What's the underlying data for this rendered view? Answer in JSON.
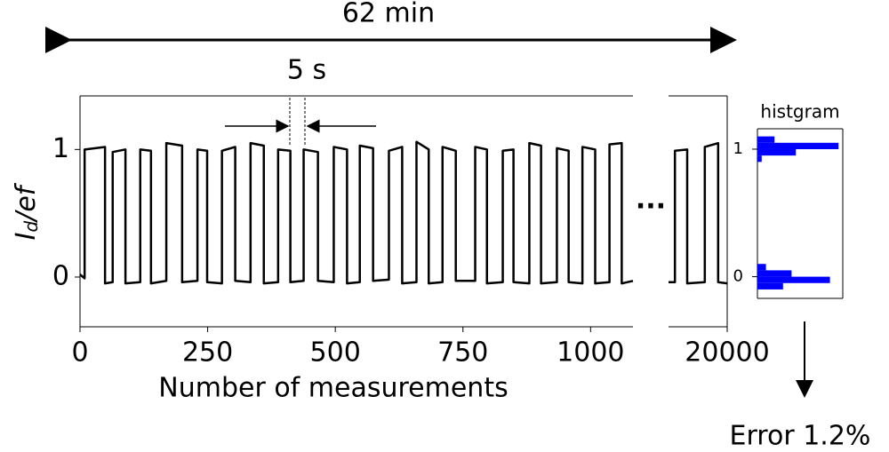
{
  "chart_data": [
    {
      "type": "line",
      "xlabel": "Number of measurements",
      "ylabel": [
        "I",
        "d",
        "/ef"
      ],
      "annotations": {
        "duration": "62 min",
        "interval": "5 s",
        "ellipsis": "...",
        "error": "Error 1.2%"
      },
      "xlim": [
        0,
        1083
      ],
      "ylim": [
        -0.39,
        1.42
      ],
      "xticks": [
        0,
        250,
        500,
        750,
        1000
      ],
      "yticks": [
        0,
        1
      ],
      "color": "#000000",
      "x": [
        0,
        9,
        9,
        49,
        49,
        64,
        64,
        89,
        89,
        118,
        118,
        139,
        139,
        169,
        169,
        200,
        200,
        230,
        230,
        249,
        249,
        278,
        278,
        304,
        304,
        334,
        334,
        360,
        360,
        388,
        388,
        412,
        412,
        438,
        438,
        466,
        466,
        497,
        497,
        523,
        523,
        548,
        548,
        574,
        574,
        605,
        605,
        631,
        631,
        659,
        659,
        683,
        683,
        710,
        710,
        736,
        736,
        774,
        774,
        797,
        797,
        828,
        828,
        849,
        849,
        880,
        880,
        903,
        903,
        934,
        934,
        957,
        957,
        984,
        984,
        1009,
        1009,
        1037,
        1037,
        1061,
        1061,
        1083
      ],
      "values": [
        0.02,
        -0.01,
        1.0,
        1.02,
        -0.05,
        -0.04,
        0.98,
        1.0,
        -0.05,
        -0.04,
        1.0,
        0.99,
        -0.05,
        -0.03,
        1.05,
        1.03,
        -0.04,
        -0.03,
        1.0,
        0.99,
        -0.04,
        -0.05,
        0.99,
        1.02,
        -0.03,
        -0.04,
        1.05,
        1.03,
        -0.05,
        -0.04,
        1.0,
        0.99,
        -0.04,
        -0.03,
        1.0,
        0.98,
        -0.03,
        -0.04,
        1.02,
        1.0,
        -0.05,
        -0.04,
        1.03,
        1.01,
        -0.03,
        -0.02,
        0.99,
        1.02,
        -0.05,
        -0.04,
        1.06,
        1.0,
        -0.05,
        -0.04,
        1.02,
        0.99,
        -0.03,
        -0.03,
        1.02,
        1.0,
        -0.05,
        -0.04,
        0.99,
        1.0,
        -0.04,
        -0.05,
        1.05,
        1.03,
        -0.05,
        -0.04,
        1.01,
        0.99,
        -0.04,
        -0.05,
        1.02,
        1.0,
        -0.05,
        -0.04,
        1.04,
        1.05,
        -0.05,
        -0.03
      ]
    },
    {
      "type": "line",
      "xlim": [
        19890,
        20000
      ],
      "ylim": [
        -0.39,
        1.42
      ],
      "xticks": [
        20000
      ],
      "color": "#000000",
      "x": [
        19890,
        19902,
        19902,
        19925,
        19925,
        19958,
        19958,
        19983,
        19983,
        20000
      ],
      "values": [
        -0.04,
        -0.04,
        0.99,
        1.0,
        -0.05,
        -0.04,
        1.02,
        1.05,
        -0.04,
        -0.05
      ]
    },
    {
      "type": "histogram",
      "title": "histgram",
      "orientation": "horizontal",
      "ylim": [
        -0.17,
        1.16
      ],
      "yticks": [
        0,
        1
      ],
      "xlim": [
        0,
        100
      ],
      "color": "#0000ff",
      "bins": [
        -0.1,
        -0.05,
        0,
        0.05,
        0.1,
        0.15,
        0.2,
        0.25,
        0.3,
        0.35,
        0.4,
        0.45,
        0.5,
        0.55,
        0.6,
        0.65,
        0.7,
        0.75,
        0.8,
        0.85,
        0.9,
        0.95,
        1.0,
        1.05,
        1.1
      ],
      "counts": [
        30,
        85,
        40,
        10,
        0,
        0,
        0,
        0,
        0,
        0,
        0,
        0,
        0,
        0,
        0,
        0,
        0,
        0,
        0,
        0,
        5,
        45,
        95,
        20
      ]
    }
  ]
}
